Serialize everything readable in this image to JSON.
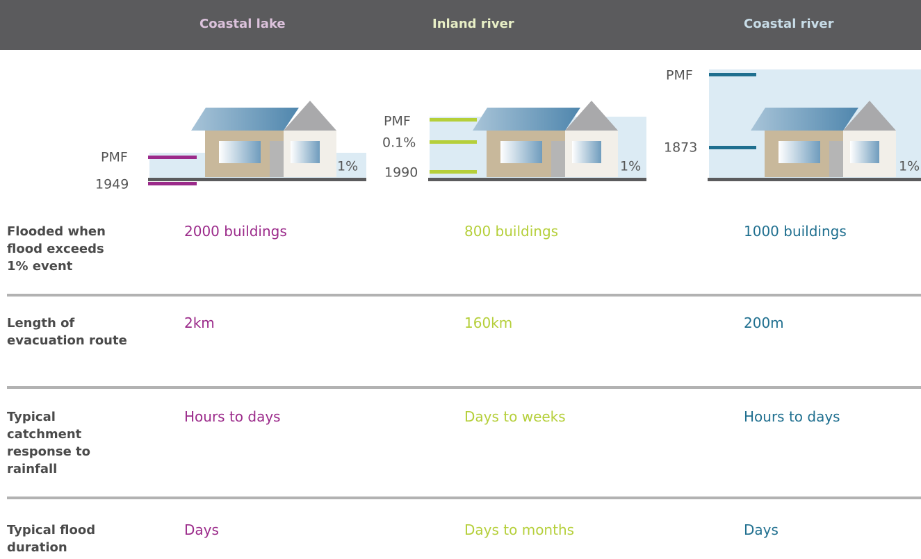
{
  "header": {
    "columns": [
      "Coastal lake",
      "Inland river",
      "Coastal river"
    ]
  },
  "diagrams": [
    {
      "markers": [
        "PMF",
        "1949"
      ],
      "level": "1%"
    },
    {
      "markers": [
        "PMF",
        "0.1%",
        "1990"
      ],
      "level": "1%"
    },
    {
      "markers": [
        "PMF",
        "1873"
      ],
      "level": "1%"
    }
  ],
  "rows": [
    {
      "label": "Flooded when flood exceeds 1% event",
      "values": [
        "2000 buildings",
        "800 buildings",
        "1000 buildings"
      ]
    },
    {
      "label": "Length of evacuation route",
      "values": [
        "2km",
        "160km",
        "200m"
      ]
    },
    {
      "label": "Typical catchment response to rainfall",
      "values": [
        "Hours to days",
        "Days to weeks",
        "Hours to days"
      ]
    },
    {
      "label": "Typical flood duration",
      "values": [
        "Days",
        "Days to months",
        "Days"
      ]
    }
  ]
}
